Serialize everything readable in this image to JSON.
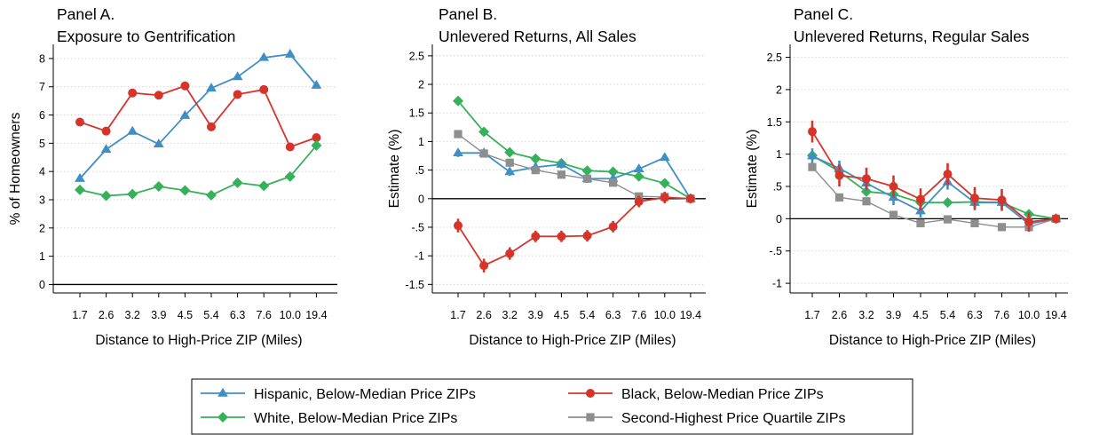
{
  "colors": {
    "hispanic": "#3f8fc4",
    "black": "#d6342a",
    "white": "#35b15a",
    "second_quartile": "#8e8e8e",
    "grid": "#d4d4d4"
  },
  "legend": {
    "placement": "bottom-center",
    "entries": [
      {
        "key": "hispanic",
        "label": "Hispanic, Below-Median Price ZIPs",
        "marker": "triangle"
      },
      {
        "key": "black",
        "label": "Black, Below-Median Price ZIPs",
        "marker": "circle"
      },
      {
        "key": "white",
        "label": "White, Below-Median Price ZIPs",
        "marker": "diamond"
      },
      {
        "key": "second_quartile",
        "label": "Second-Highest Price Quartile ZIPs",
        "marker": "square"
      }
    ]
  },
  "chart_data": [
    {
      "type": "line",
      "panel": "A",
      "title_line1": "Panel A.",
      "title_line2": "Exposure to Gentrification",
      "xlabel": "Distance to High-Price ZIP (Miles)",
      "ylabel": "% of Homeowners",
      "categories": [
        "1.7",
        "2.6",
        "3.2",
        "3.9",
        "4.5",
        "5.4",
        "6.3",
        "7.6",
        "10.0",
        "19.4"
      ],
      "ylim": [
        -0.3,
        8.5
      ],
      "yticks": [
        0,
        1,
        2,
        3,
        4,
        5,
        6,
        7,
        8
      ],
      "ytick_labels": [
        "0",
        "1",
        "2",
        "3",
        "4",
        "5",
        "6",
        "7",
        "8"
      ],
      "grid": true,
      "zero_line": true,
      "series": [
        {
          "key": "hispanic",
          "values": [
            3.75,
            4.78,
            5.42,
            4.97,
            5.98,
            6.95,
            7.35,
            8.03,
            8.15,
            7.05
          ]
        },
        {
          "key": "black",
          "values": [
            5.75,
            5.43,
            6.78,
            6.7,
            7.03,
            5.58,
            6.73,
            6.9,
            4.87,
            5.2
          ]
        },
        {
          "key": "white",
          "values": [
            3.35,
            3.14,
            3.2,
            3.47,
            3.33,
            3.16,
            3.6,
            3.49,
            3.82,
            4.92
          ]
        }
      ]
    },
    {
      "type": "line",
      "panel": "B",
      "title_line1": "Panel B.",
      "title_line2": "Unlevered Returns, All Sales",
      "xlabel": "Distance to High-Price ZIP (Miles)",
      "ylabel": "Estimate (%)",
      "categories": [
        "1.7",
        "2.6",
        "3.2",
        "3.9",
        "4.5",
        "5.4",
        "6.3",
        "7.6",
        "10.0",
        "19.4"
      ],
      "ylim": [
        -1.65,
        2.7
      ],
      "yticks": [
        -1.5,
        -1,
        -0.5,
        0,
        0.5,
        1,
        1.5,
        2,
        2.5
      ],
      "ytick_labels": [
        "-1.5",
        "-1",
        "-.5",
        "0",
        ".5",
        "1",
        "1.5",
        "2",
        "2.5"
      ],
      "grid": true,
      "zero_line": true,
      "series": [
        {
          "key": "white",
          "values": [
            1.71,
            1.17,
            0.81,
            0.7,
            0.62,
            0.49,
            0.47,
            0.39,
            0.27,
            0.0
          ]
        },
        {
          "key": "hispanic",
          "values": [
            0.8,
            0.8,
            0.47,
            0.55,
            0.6,
            0.35,
            0.35,
            0.52,
            0.72,
            0.0
          ],
          "error": [
            0.07,
            0.07,
            0.07,
            0.07,
            0.07,
            0.07,
            0.07,
            0.07,
            0.0,
            0.0
          ]
        },
        {
          "key": "second_quartile",
          "values": [
            1.13,
            0.79,
            0.63,
            0.5,
            0.42,
            0.35,
            0.28,
            0.04,
            0.03,
            0.0
          ]
        },
        {
          "key": "black",
          "values": [
            -0.47,
            -1.17,
            -0.96,
            -0.66,
            -0.66,
            -0.65,
            -0.49,
            -0.05,
            0.02,
            0.0
          ],
          "error": [
            0.12,
            0.12,
            0.11,
            0.1,
            0.1,
            0.1,
            0.1,
            0.1,
            0.1,
            0.0
          ]
        }
      ]
    },
    {
      "type": "line",
      "panel": "C",
      "title_line1": "Panel C.",
      "title_line2": "Unlevered Returns, Regular Sales",
      "xlabel": "Distance to High-Price ZIP (Miles)",
      "ylabel": "Estimate (%)",
      "categories": [
        "1.7",
        "2.6",
        "3.2",
        "3.9",
        "4.5",
        "5.4",
        "6.3",
        "7.6",
        "10.0",
        "19.4"
      ],
      "ylim": [
        -1.15,
        2.7
      ],
      "yticks": [
        -1,
        -0.5,
        0,
        0.5,
        1,
        1.5,
        2,
        2.5
      ],
      "ytick_labels": [
        "-1",
        "-.5",
        "0",
        ".5",
        "1",
        "1.5",
        "2",
        "2.5"
      ],
      "grid": true,
      "zero_line": true,
      "series": [
        {
          "key": "white",
          "values": [
            0.98,
            0.73,
            0.42,
            0.38,
            0.25,
            0.25,
            0.26,
            0.25,
            0.07,
            0.0
          ]
        },
        {
          "key": "hispanic",
          "values": [
            0.97,
            0.78,
            0.55,
            0.33,
            0.12,
            0.57,
            0.25,
            0.25,
            -0.08,
            0.0
          ],
          "error": [
            0.12,
            0.12,
            0.12,
            0.12,
            0.1,
            0.12,
            0.12,
            0.1,
            0.1,
            0.0
          ]
        },
        {
          "key": "second_quartile",
          "values": [
            0.8,
            0.33,
            0.27,
            0.06,
            -0.07,
            -0.01,
            -0.07,
            -0.13,
            -0.13,
            0.0
          ]
        },
        {
          "key": "black",
          "values": [
            1.35,
            0.67,
            0.62,
            0.5,
            0.3,
            0.69,
            0.32,
            0.29,
            -0.05,
            0.0
          ],
          "error": [
            0.17,
            0.17,
            0.17,
            0.17,
            0.17,
            0.17,
            0.17,
            0.17,
            0.15,
            0.0
          ]
        }
      ]
    }
  ]
}
